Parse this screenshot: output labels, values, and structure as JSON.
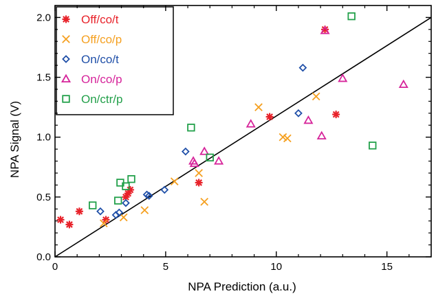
{
  "chart_data": {
    "type": "scatter",
    "xlabel": "NPA Prediction (a.u.)",
    "ylabel": "NPA Signal (V)",
    "xlim": [
      0,
      17
    ],
    "ylim": [
      0,
      2.1
    ],
    "x_ticks": [
      0,
      5,
      10,
      15
    ],
    "x_tick_labels": [
      "0",
      "5",
      "10",
      "15"
    ],
    "y_ticks": [
      0.0,
      0.5,
      1.0,
      1.5,
      2.0
    ],
    "y_tick_labels": [
      "0.0",
      "0.5",
      "1.0",
      "1.5",
      "2.0"
    ],
    "grid": false,
    "legend_position": "top-left",
    "reference_line": {
      "x": [
        0,
        17
      ],
      "y": [
        0,
        2.0
      ]
    },
    "series": [
      {
        "name": "Off/co/t",
        "marker": "asterisk",
        "color": "#e8222a",
        "points": [
          [
            0.25,
            0.31
          ],
          [
            0.65,
            0.27
          ],
          [
            1.1,
            0.38
          ],
          [
            2.3,
            0.31
          ],
          [
            3.2,
            0.5
          ],
          [
            3.3,
            0.53
          ],
          [
            3.4,
            0.56
          ],
          [
            6.5,
            0.62
          ],
          [
            9.7,
            1.17
          ],
          [
            12.7,
            1.19
          ],
          [
            12.2,
            1.9
          ]
        ]
      },
      {
        "name": "Off/co/p",
        "marker": "x",
        "color": "#f5a020",
        "points": [
          [
            2.2,
            0.28
          ],
          [
            3.1,
            0.33
          ],
          [
            4.05,
            0.39
          ],
          [
            5.4,
            0.63
          ],
          [
            6.5,
            0.7
          ],
          [
            6.75,
            0.46
          ],
          [
            9.2,
            1.25
          ],
          [
            10.3,
            1.0
          ],
          [
            10.5,
            0.99
          ],
          [
            11.8,
            1.34
          ]
        ]
      },
      {
        "name": "On/co/t",
        "marker": "diamond",
        "color": "#1f4fa8",
        "points": [
          [
            2.05,
            0.38
          ],
          [
            2.75,
            0.35
          ],
          [
            2.9,
            0.37
          ],
          [
            3.2,
            0.45
          ],
          [
            4.15,
            0.52
          ],
          [
            4.25,
            0.51
          ],
          [
            4.95,
            0.56
          ],
          [
            5.9,
            0.88
          ],
          [
            11.0,
            1.2
          ],
          [
            11.2,
            1.58
          ]
        ]
      },
      {
        "name": "On/co/p",
        "marker": "triangle",
        "color": "#d6249a",
        "points": [
          [
            6.25,
            0.8
          ],
          [
            6.3,
            0.78
          ],
          [
            6.75,
            0.88
          ],
          [
            7.4,
            0.8
          ],
          [
            8.85,
            1.11
          ],
          [
            11.45,
            1.14
          ],
          [
            12.05,
            1.01
          ],
          [
            12.2,
            1.89
          ],
          [
            13.0,
            1.49
          ],
          [
            15.75,
            1.44
          ]
        ]
      },
      {
        "name": "On/ctr/p",
        "marker": "square",
        "color": "#22a04a",
        "points": [
          [
            1.7,
            0.43
          ],
          [
            2.85,
            0.47
          ],
          [
            2.95,
            0.62
          ],
          [
            3.2,
            0.59
          ],
          [
            3.45,
            0.65
          ],
          [
            6.15,
            1.08
          ],
          [
            7.0,
            0.83
          ],
          [
            13.4,
            2.01
          ],
          [
            14.35,
            0.93
          ]
        ]
      }
    ]
  }
}
